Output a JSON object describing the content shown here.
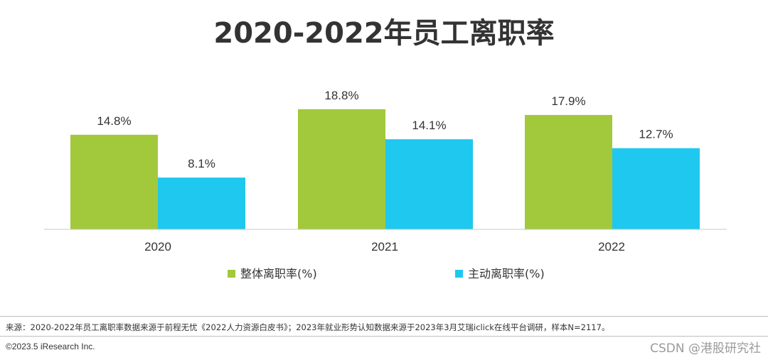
{
  "title": "2020-2022年员工离职率",
  "chart_data": {
    "type": "bar",
    "title": "2020-2022年员工离职率",
    "categories": [
      "2020",
      "2021",
      "2022"
    ],
    "series": [
      {
        "name": "整体离职率(%)",
        "color": "#a2c83c",
        "values": [
          14.8,
          18.8,
          17.9
        ],
        "labels": [
          "14.8%",
          "18.8%",
          "17.9%"
        ]
      },
      {
        "name": "主动离职率(%)",
        "color": "#1ec8ee",
        "values": [
          8.1,
          14.1,
          12.7
        ],
        "labels": [
          "8.1%",
          "14.1%",
          "12.7%"
        ]
      }
    ],
    "xlabel": "",
    "ylabel": "",
    "ylim": [
      0,
      20
    ],
    "grid": false,
    "legend": "bottom-center"
  },
  "footer": {
    "source": "来源：2020-2022年员工离职率数据来源于前程无忧《2022人力资源白皮书》；2023年就业形势认知数据来源于2023年3月艾瑞iclick在线平台调研，样本N=2117。",
    "copyright": "©2023.5 iResearch Inc.",
    "watermark": "CSDN @港股研究社"
  }
}
